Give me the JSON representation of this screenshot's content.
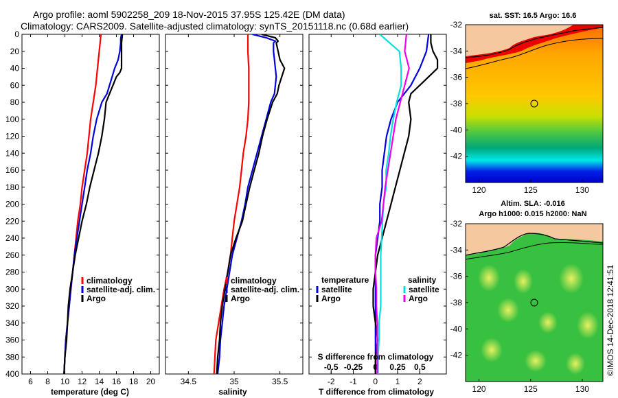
{
  "header": {
    "line1": "Argo profile: aoml 5902258_209 18-Nov-2015 37.95S 125.42E (DM data)",
    "line2": "Climatology: CARS2009. Satellite-adjusted climatology: synTS_20151118.nc (0.68d earlier)"
  },
  "colors": {
    "climatology": "#ff0000",
    "satellite": "#0000dd",
    "argo": "#000000",
    "cyan": "#00e0e0",
    "magenta": "#ee00ee",
    "land": "#f5c8a0"
  },
  "chart_data": [
    {
      "type": "line",
      "id": "temperature",
      "xlabel": "temperature (deg C)",
      "ylabel": "",
      "xlim": [
        5,
        21
      ],
      "ylim": [
        400,
        0
      ],
      "xticks": [
        6,
        8,
        10,
        12,
        14,
        16,
        18,
        20
      ],
      "yticks": [
        0,
        20,
        40,
        60,
        80,
        100,
        120,
        140,
        160,
        180,
        200,
        220,
        240,
        260,
        280,
        300,
        320,
        340,
        360,
        380,
        400
      ],
      "legend": [
        "climatology",
        "satellite-adj. clim.",
        "Argo"
      ],
      "series": [
        {
          "name": "climatology",
          "color": "red",
          "depth": [
            0,
            10,
            20,
            40,
            60,
            80,
            100,
            120,
            140,
            160,
            180,
            200,
            220,
            240,
            260,
            280,
            300,
            320,
            340,
            360,
            380,
            400
          ],
          "values": [
            14.2,
            14.1,
            14.0,
            13.8,
            13.6,
            13.3,
            13.0,
            12.8,
            12.6,
            12.3,
            12.0,
            11.8,
            11.5,
            11.3,
            11.1,
            10.9,
            10.7,
            10.5,
            10.3,
            10.1,
            10.0,
            9.9
          ]
        },
        {
          "name": "satellite-adj. clim.",
          "color": "blue",
          "depth": [
            0,
            5,
            10,
            20,
            30,
            40,
            50,
            60,
            70,
            80,
            100,
            120,
            140,
            160,
            180,
            200,
            220,
            240,
            260,
            280,
            300,
            320,
            340,
            360,
            380,
            400
          ],
          "values": [
            16.6,
            16.5,
            16.5,
            16.4,
            16.2,
            15.8,
            15.5,
            15.2,
            14.9,
            14.3,
            13.7,
            13.3,
            13.0,
            12.6,
            12.3,
            12.0,
            11.7,
            11.4,
            11.1,
            10.9,
            10.7,
            10.5,
            10.3,
            10.1,
            10.0,
            9.9
          ]
        },
        {
          "name": "Argo",
          "color": "black",
          "depth": [
            0,
            10,
            20,
            30,
            40,
            45,
            50,
            60,
            70,
            80,
            100,
            120,
            140,
            160,
            180,
            200,
            220,
            240,
            260,
            280,
            300,
            320,
            340,
            360,
            380,
            400
          ],
          "values": [
            16.7,
            16.6,
            16.6,
            16.6,
            16.6,
            16.4,
            16.0,
            15.6,
            15.2,
            14.8,
            14.6,
            14.3,
            13.9,
            13.4,
            12.9,
            12.5,
            12.0,
            11.6,
            11.2,
            10.9,
            10.6,
            10.4,
            10.3,
            10.2,
            10.0,
            9.9
          ]
        }
      ]
    },
    {
      "type": "line",
      "id": "salinity",
      "xlabel": "salinity",
      "xlim": [
        34.25,
        35.75
      ],
      "ylim": [
        400,
        0
      ],
      "xticks": [
        "34.5",
        "35",
        "35.5"
      ],
      "legend": [
        "climatology",
        "satellite-adj. clim.",
        "Argo"
      ],
      "series": [
        {
          "name": "climatology",
          "color": "red",
          "depth": [
            0,
            20,
            40,
            60,
            80,
            100,
            120,
            140,
            160,
            180,
            200,
            220,
            240,
            260,
            280,
            300,
            320,
            340,
            360,
            380,
            400
          ],
          "values": [
            35.15,
            35.15,
            35.16,
            35.16,
            35.16,
            35.15,
            35.13,
            35.1,
            35.08,
            35.06,
            35.03,
            35.0,
            34.98,
            34.96,
            34.93,
            34.89,
            34.86,
            34.83,
            34.8,
            34.79,
            34.78
          ]
        },
        {
          "name": "satellite-adj. clim.",
          "color": "blue",
          "depth": [
            0,
            4,
            8,
            10,
            15,
            20,
            30,
            40,
            50,
            60,
            70,
            80,
            100,
            120,
            140,
            160,
            180,
            200,
            220,
            240,
            260,
            280,
            300,
            320,
            340,
            360,
            380,
            400
          ],
          "values": [
            35.2,
            35.35,
            35.45,
            35.43,
            35.43,
            35.43,
            35.44,
            35.45,
            35.46,
            35.45,
            35.44,
            35.4,
            35.35,
            35.3,
            35.25,
            35.2,
            35.15,
            35.12,
            35.08,
            35.03,
            34.98,
            34.95,
            34.92,
            34.89,
            34.87,
            34.85,
            34.84,
            34.82
          ]
        },
        {
          "name": "Argo",
          "color": "black",
          "depth": [
            0,
            4,
            8,
            10,
            20,
            30,
            40,
            50,
            60,
            70,
            80,
            100,
            120,
            140,
            160,
            180,
            200,
            220,
            240,
            260,
            280,
            300,
            320,
            340,
            360,
            380,
            400
          ],
          "values": [
            35.3,
            35.45,
            35.48,
            35.46,
            35.48,
            35.5,
            35.55,
            35.52,
            35.49,
            35.47,
            35.42,
            35.36,
            35.31,
            35.27,
            35.22,
            35.17,
            35.13,
            35.09,
            35.02,
            34.96,
            34.93,
            34.9,
            34.87,
            34.85,
            34.84,
            34.82,
            34.81
          ]
        }
      ]
    },
    {
      "type": "line",
      "id": "difference",
      "xlabel": "T difference from climatology",
      "xlabel2": "S difference from climatology",
      "xlim": [
        -3,
        3.2
      ],
      "xlim2": [
        -0.75,
        0.8
      ],
      "ylim": [
        400,
        0
      ],
      "xticks": [
        "-2",
        "-1",
        "0",
        "1",
        "2"
      ],
      "xticks2": [
        "-0.5",
        "-0.25",
        "0",
        "0.25",
        "0.5"
      ],
      "legend_temperature": {
        "title": "temperature",
        "items": [
          "satellite",
          "Argo"
        ]
      },
      "legend_salinity": {
        "title": "salinity",
        "items": [
          "satellite",
          "Argo"
        ]
      },
      "series": [
        {
          "name": "T satellite",
          "color": "blue",
          "depth": [
            0,
            20,
            40,
            60,
            80,
            100,
            120,
            140,
            160,
            180,
            200,
            220,
            240,
            260,
            280,
            300,
            320,
            340,
            360,
            380,
            400
          ],
          "values": [
            2.4,
            2.3,
            2.0,
            1.6,
            1.0,
            0.7,
            0.5,
            0.4,
            0.3,
            0.3,
            0.2,
            0.2,
            0.1,
            0.0,
            0.0,
            0.0,
            0.0,
            0.0,
            0.0,
            0.0,
            0.0
          ]
        },
        {
          "name": "T Argo",
          "color": "black",
          "depth": [
            0,
            10,
            20,
            30,
            40,
            60,
            70,
            80,
            100,
            120,
            140,
            160,
            180,
            200,
            220,
            240,
            260,
            280,
            300,
            320,
            340,
            360,
            380,
            400
          ],
          "values": [
            2.5,
            2.5,
            2.6,
            2.8,
            2.8,
            2.0,
            1.6,
            1.5,
            1.6,
            1.5,
            1.3,
            1.1,
            0.9,
            0.7,
            0.5,
            0.3,
            0.1,
            0.0,
            -0.1,
            -0.1,
            0.0,
            0.1,
            0.0,
            0.0
          ]
        },
        {
          "name": "S satellite",
          "color": "cyan",
          "depth": [
            0,
            20,
            40,
            60,
            80,
            100,
            120,
            140,
            160,
            180,
            200,
            220,
            240,
            260,
            280,
            300,
            320,
            340,
            360,
            380,
            400
          ],
          "values": [
            0.05,
            0.27,
            0.29,
            0.29,
            0.24,
            0.2,
            0.17,
            0.15,
            0.12,
            0.12,
            0.09,
            0.08,
            0.07,
            0.06,
            0.06,
            0.06,
            0.06,
            0.04,
            0.04,
            0.03,
            0.03
          ]
        },
        {
          "name": "S Argo",
          "color": "magenta",
          "depth": [
            0,
            20,
            40,
            60,
            80,
            100,
            120,
            140,
            160,
            180,
            200,
            220,
            240,
            260,
            280,
            300,
            320,
            340,
            360,
            380,
            400
          ],
          "values": [
            0.35,
            0.33,
            0.38,
            0.33,
            0.28,
            0.23,
            0.2,
            0.17,
            0.14,
            0.11,
            0.09,
            0.07,
            0.01,
            0.0,
            0.0,
            0.01,
            0.01,
            0.02,
            0.02,
            0.02,
            0.02
          ]
        }
      ]
    }
  ],
  "maps": {
    "sst": {
      "title": "sat. SST: 16.5 Argo: 16.6",
      "xticks": [
        "120",
        "125",
        "130"
      ],
      "yticks": [
        "-32",
        "-34",
        "-36",
        "-38",
        "-40",
        "-42"
      ],
      "argo_position": [
        125.42,
        -37.95
      ]
    },
    "sla": {
      "title_line1": "Altim. SLA: -0.016",
      "title_line2": "Argo h1000: 0.015 h2000: NaN",
      "xticks": [
        "120",
        "125",
        "130"
      ],
      "yticks": [
        "-32",
        "-34",
        "-36",
        "-38",
        "-40",
        "-42"
      ],
      "argo_position": [
        125.42,
        -37.95
      ]
    }
  },
  "credit": "©IMOS 14-Dec-2018 12:41:51"
}
